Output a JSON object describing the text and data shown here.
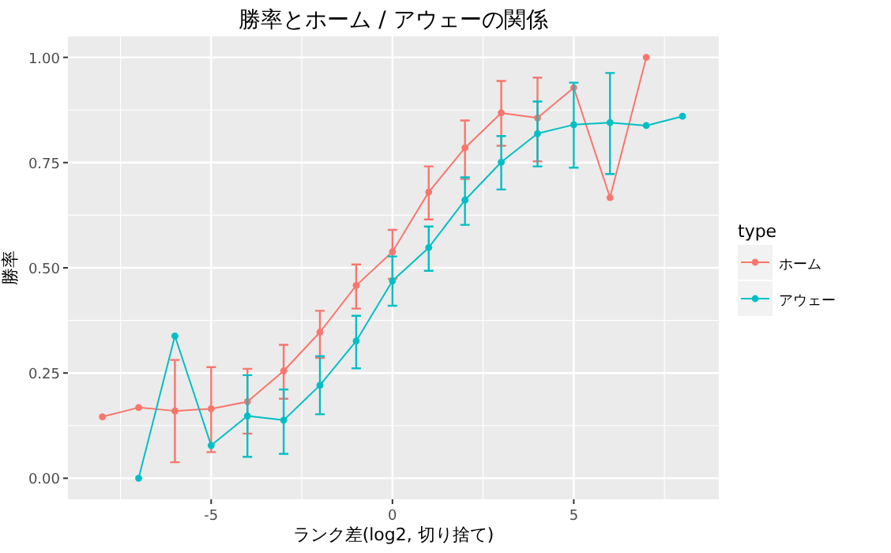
{
  "chart_data": {
    "type": "line",
    "title": "勝率とホーム / アウェーの関係",
    "xlabel": "ランク差(log2, 切り捨て)",
    "ylabel": "勝率",
    "legend_title": "type",
    "legend": "right",
    "grid": true,
    "marker": "circle",
    "line_style": "solid",
    "xlim": [
      -8.95,
      9.0
    ],
    "ylim": [
      -0.05,
      1.05
    ],
    "xticks": [
      -5,
      0,
      5
    ],
    "yticks": [
      {
        "value": 0,
        "label": "0.00"
      },
      {
        "value": 0.25,
        "label": "0.25"
      },
      {
        "value": 0.5,
        "label": "0.50"
      },
      {
        "value": 0.75,
        "label": "0.75"
      },
      {
        "value": 1,
        "label": "1.00"
      }
    ],
    "series": [
      {
        "name": "ホーム",
        "color": "#f8766d",
        "x": [
          -8,
          -7,
          -6,
          -5,
          -4,
          -3,
          -2,
          -1,
          0,
          1,
          2,
          3,
          4,
          5,
          6,
          7
        ],
        "values": [
          0.146,
          0.168,
          0.16,
          0.165,
          0.182,
          0.255,
          0.347,
          0.458,
          0.538,
          0.68,
          0.785,
          0.868,
          0.856,
          0.928,
          0.667,
          1.0
        ],
        "errors": [
          null,
          null,
          [
            0.038,
            0.281
          ],
          [
            0.062,
            0.264
          ],
          [
            0.106,
            0.26
          ],
          [
            0.189,
            0.317
          ],
          [
            0.286,
            0.398
          ],
          [
            0.403,
            0.508
          ],
          [
            0.474,
            0.59
          ],
          [
            0.615,
            0.741
          ],
          [
            0.711,
            0.85
          ],
          [
            0.79,
            0.944
          ],
          [
            0.753,
            0.952
          ],
          null,
          null,
          null
        ]
      },
      {
        "name": "アウェー",
        "color": "#00bfc4",
        "x": [
          -7,
          -6,
          -5,
          -4,
          -3,
          -2,
          -1,
          0,
          1,
          2,
          3,
          4,
          5,
          6,
          7,
          8
        ],
        "values": [
          0.0,
          0.338,
          0.078,
          0.148,
          0.138,
          0.221,
          0.326,
          0.469,
          0.548,
          0.661,
          0.751,
          0.819,
          0.84,
          0.845,
          0.838,
          0.86
        ],
        "errors": [
          null,
          null,
          null,
          [
            0.051,
            0.245
          ],
          [
            0.058,
            0.211
          ],
          [
            0.152,
            0.29
          ],
          [
            0.261,
            0.386
          ],
          [
            0.41,
            0.527
          ],
          [
            0.493,
            0.598
          ],
          [
            0.602,
            0.715
          ],
          [
            0.686,
            0.813
          ],
          [
            0.741,
            0.895
          ],
          [
            0.738,
            0.94
          ],
          [
            0.723,
            0.963
          ],
          null,
          null
        ]
      }
    ]
  }
}
